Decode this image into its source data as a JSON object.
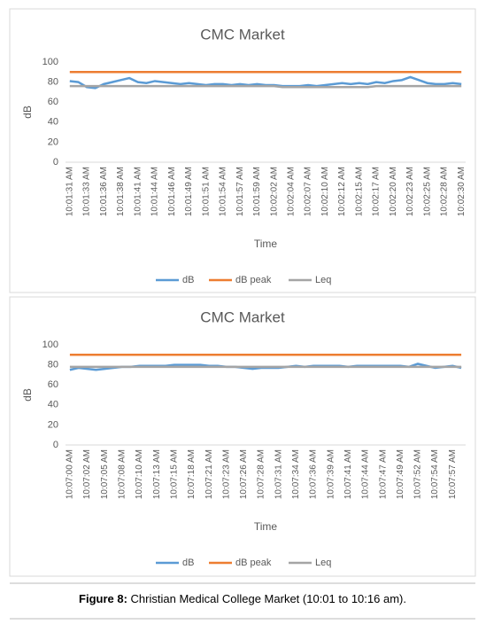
{
  "chart_data": [
    {
      "type": "line",
      "title": "CMC Market",
      "ylabel": "dB",
      "xlabel": "Time",
      "categories": [
        "10:01:31 AM",
        null,
        "10:01:33 AM",
        null,
        "10:01:36 AM",
        null,
        "10:01:38 AM",
        null,
        "10:01:41 AM",
        null,
        "10:01:44 AM",
        null,
        "10:01:46 AM",
        null,
        "10:01:49 AM",
        null,
        "10:01:51 AM",
        null,
        "10:01:54 AM",
        null,
        "10:01:57 AM",
        null,
        "10:01:59 AM",
        null,
        "10:02:02 AM",
        null,
        "10:02:04 AM",
        null,
        "10:02:07 AM",
        null,
        "10:02:10 AM",
        null,
        "10:02:12 AM",
        null,
        "10:02:15 AM",
        null,
        "10:02:17 AM",
        null,
        "10:02:20 AM",
        null,
        "10:02:23 AM",
        null,
        "10:02:25 AM",
        null,
        "10:02:28 AM",
        null,
        "10:02:30 AM"
      ],
      "series": [
        {
          "name": "dB",
          "color": "#5b9bd5",
          "values": [
            81,
            80,
            75,
            74,
            78,
            80,
            82,
            84,
            80,
            79,
            81,
            80,
            79,
            78,
            79,
            78,
            77,
            78,
            78,
            77,
            78,
            77,
            78,
            77,
            77,
            76,
            76,
            76,
            77,
            76,
            77,
            78,
            79,
            78,
            79,
            78,
            80,
            79,
            81,
            82,
            85,
            82,
            79,
            78,
            78,
            79,
            78
          ]
        },
        {
          "name": "dB peak",
          "color": "#ed7d31",
          "values": [
            90,
            90,
            90,
            90,
            90,
            90,
            90,
            90,
            90,
            90,
            90,
            90,
            90,
            90,
            90,
            90,
            90,
            90,
            90,
            90,
            90,
            90,
            90,
            90,
            90,
            90,
            90,
            90,
            90,
            90,
            90,
            90,
            90,
            90,
            90,
            90,
            90,
            90,
            90,
            90,
            90,
            90,
            90,
            90,
            90,
            90,
            90
          ]
        },
        {
          "name": "Leq",
          "color": "#a5a5a5",
          "values": [
            76,
            76,
            76,
            76,
            76,
            76,
            76,
            76,
            76,
            76,
            76,
            76,
            76,
            76,
            76,
            76,
            76,
            76,
            76,
            76,
            76,
            76,
            76,
            76,
            76,
            75,
            75,
            75,
            75,
            75,
            75,
            75,
            75,
            75,
            75,
            75,
            76,
            76,
            76,
            76,
            76,
            76,
            76,
            76,
            76,
            76,
            76
          ]
        }
      ],
      "ylim": [
        0,
        100
      ],
      "yticks": [
        0,
        20,
        40,
        60,
        80,
        100
      ],
      "grid": false,
      "legend": "bottom"
    },
    {
      "type": "line",
      "title": "CMC Market",
      "ylabel": "dB",
      "xlabel": "Time",
      "categories": [
        "10:07:00 AM",
        null,
        "10:07:02 AM",
        null,
        "10:07:05 AM",
        null,
        "10:07:08 AM",
        null,
        "10:07:10 AM",
        null,
        "10:07:13 AM",
        null,
        "10:07:15 AM",
        null,
        "10:07:18 AM",
        null,
        "10:07:21 AM",
        null,
        "10:07:23 AM",
        null,
        "10:07:26 AM",
        null,
        "10:07:28 AM",
        null,
        "10:07:31 AM",
        null,
        "10:07:34 AM",
        null,
        "10:07:36 AM",
        null,
        "10:07:39 AM",
        null,
        "10:07:41 AM",
        null,
        "10:07:44 AM",
        null,
        "10:07:47 AM",
        null,
        "10:07:49 AM",
        null,
        "10:07:52 AM",
        null,
        "10:07:54 AM",
        null,
        "10:07:57 AM",
        null
      ],
      "series": [
        {
          "name": "dB",
          "color": "#5b9bd5",
          "values": [
            75,
            77,
            76,
            75,
            76,
            77,
            78,
            78,
            79,
            79,
            79,
            79,
            80,
            80,
            80,
            80,
            79,
            79,
            78,
            78,
            77,
            76,
            77,
            77,
            77,
            78,
            79,
            78,
            79,
            79,
            79,
            79,
            78,
            79,
            79,
            79,
            79,
            79,
            79,
            78,
            81,
            79,
            77,
            78,
            79,
            77
          ]
        },
        {
          "name": "dB peak",
          "color": "#ed7d31",
          "values": [
            90,
            90,
            90,
            90,
            90,
            90,
            90,
            90,
            90,
            90,
            90,
            90,
            90,
            90,
            90,
            90,
            90,
            90,
            90,
            90,
            90,
            90,
            90,
            90,
            90,
            90,
            90,
            90,
            90,
            90,
            90,
            90,
            90,
            90,
            90,
            90,
            90,
            90,
            90,
            90,
            90,
            90,
            90,
            90,
            90,
            90
          ]
        },
        {
          "name": "Leq",
          "color": "#a5a5a5",
          "values": [
            78,
            78,
            78,
            78,
            78,
            78,
            78,
            78,
            78,
            78,
            78,
            78,
            78,
            78,
            78,
            78,
            78,
            78,
            78,
            78,
            78,
            78,
            78,
            78,
            78,
            78,
            78,
            78,
            78,
            78,
            78,
            78,
            78,
            78,
            78,
            78,
            78,
            78,
            78,
            78,
            78,
            78,
            78,
            78,
            78,
            78
          ]
        }
      ],
      "ylim": [
        0,
        100
      ],
      "yticks": [
        0,
        20,
        40,
        60,
        80,
        100
      ],
      "grid": false,
      "legend": "bottom"
    }
  ],
  "caption": {
    "label": "Figure 8:",
    "text": "Christian Medical College Market (10:01 to 10:16 am)."
  }
}
